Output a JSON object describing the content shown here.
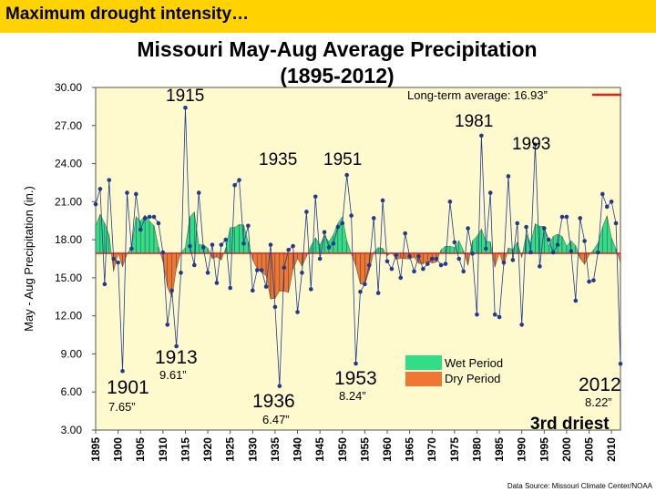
{
  "header": {
    "banner": "Maximum drought intensity…"
  },
  "chart_data": {
    "type": "line",
    "title": "Missouri May-Aug Average Precipitation",
    "subtitle": "(1895-2012)",
    "ylabel": "May - Aug Precipitation (in.)",
    "xlabel": "",
    "ylim": [
      3,
      30
    ],
    "xlim": [
      1895,
      2012
    ],
    "grid": false,
    "plot_background": "#fffacd",
    "colors": {
      "line": "#1f3a8f",
      "marker": "#1f3a8f",
      "mean": "#e02020",
      "wet": "#33dd88",
      "dry": "#ee7733"
    },
    "yticks": [
      "30.00",
      "27.00",
      "24.00",
      "21.00",
      "18.00",
      "15.00",
      "12.00",
      "9.00",
      "6.00",
      "3.00"
    ],
    "xticks": [
      "1895",
      "1900",
      "1905",
      "1910",
      "1915",
      "1920",
      "1925",
      "1930",
      "1935",
      "1940",
      "1945",
      "1950",
      "1955",
      "1960",
      "1965",
      "1970",
      "1975",
      "1980",
      "1985",
      "1990",
      "1995",
      "2000",
      "2005",
      "2010"
    ],
    "long_term_average": {
      "label": "Long-term average: 16.93”",
      "value": 16.93
    },
    "legend": [
      {
        "name": "Wet Period",
        "color": "#33dd88"
      },
      {
        "name": "Dry Period",
        "color": "#ee7733"
      }
    ],
    "series": [
      {
        "x": [
          1895,
          1896,
          1897,
          1898,
          1899,
          1900,
          1901,
          1902,
          1903,
          1904,
          1905,
          1906,
          1907,
          1908,
          1909,
          1910,
          1911,
          1912,
          1913,
          1914,
          1915,
          1916,
          1917,
          1918,
          1919,
          1920,
          1921,
          1922,
          1923,
          1924,
          1925,
          1926,
          1927,
          1928,
          1929,
          1930,
          1931,
          1932,
          1933,
          1934,
          1935,
          1936,
          1937,
          1938,
          1939,
          1940,
          1941,
          1942,
          1943,
          1944,
          1945,
          1946,
          1947,
          1948,
          1949,
          1950,
          1951,
          1952,
          1953,
          1954,
          1955,
          1956,
          1957,
          1958,
          1959,
          1960,
          1961,
          1962,
          1963,
          1964,
          1965,
          1966,
          1967,
          1968,
          1969,
          1970,
          1971,
          1972,
          1973,
          1974,
          1975,
          1976,
          1977,
          1978,
          1979,
          1980,
          1981,
          1982,
          1983,
          1984,
          1985,
          1986,
          1987,
          1988,
          1989,
          1990,
          1991,
          1992,
          1993,
          1994,
          1995,
          1996,
          1997,
          1998,
          1999,
          2000,
          2001,
          2002,
          2003,
          2004,
          2005,
          2006,
          2007,
          2008,
          2009,
          2010,
          2011,
          2012
        ],
        "values": [
          20.8,
          22.0,
          14.5,
          22.7,
          16.5,
          16.2,
          7.65,
          21.7,
          17.3,
          21.6,
          18.8,
          19.7,
          19.8,
          19.8,
          19.3,
          17.0,
          11.3,
          14.0,
          9.61,
          15.4,
          28.4,
          17.5,
          16.0,
          21.7,
          17.4,
          15.4,
          17.6,
          14.6,
          17.6,
          18.0,
          14.2,
          22.3,
          22.7,
          17.7,
          19.1,
          14.0,
          15.6,
          15.6,
          14.3,
          17.6,
          12.7,
          6.47,
          15.8,
          17.2,
          17.5,
          12.3,
          15.4,
          20.2,
          14.1,
          21.4,
          16.5,
          18.6,
          17.4,
          17.7,
          19.0,
          19.3,
          23.1,
          19.9,
          8.24,
          13.9,
          14.5,
          16.0,
          19.7,
          13.8,
          21.1,
          16.3,
          15.7,
          16.8,
          15.0,
          18.5,
          16.7,
          15.5,
          16.7,
          15.7,
          16.1,
          16.5,
          16.5,
          16.0,
          16.1,
          21.0,
          17.8,
          16.5,
          15.5,
          18.9,
          16.9,
          12.1,
          26.2,
          17.3,
          21.7,
          12.1,
          11.9,
          16.2,
          23.0,
          16.4,
          19.3,
          11.3,
          19.0,
          17.0,
          25.5,
          15.9,
          18.9,
          18.0,
          17.0,
          17.6,
          19.8,
          19.8,
          17.1,
          13.2,
          19.7,
          17.9,
          14.7,
          14.8,
          17.0,
          21.6,
          20.6,
          21.0,
          19.3,
          8.22
        ]
      }
    ],
    "annotations": [
      {
        "text": "1915"
      },
      {
        "text": "1935"
      },
      {
        "text": "1951"
      },
      {
        "text": "1981"
      },
      {
        "text": "1993"
      },
      {
        "text": "1913"
      },
      {
        "text": "9.61”"
      },
      {
        "text": "1901"
      },
      {
        "text": "7.65”"
      },
      {
        "text": "1936"
      },
      {
        "text": "6.47”"
      },
      {
        "text": "1953"
      },
      {
        "text": "8.24”"
      },
      {
        "text": "2012"
      },
      {
        "text": "8.22”"
      },
      {
        "text": "3rd driest"
      }
    ],
    "source": "Data Source: Missouri Climate Center/NOAA"
  }
}
